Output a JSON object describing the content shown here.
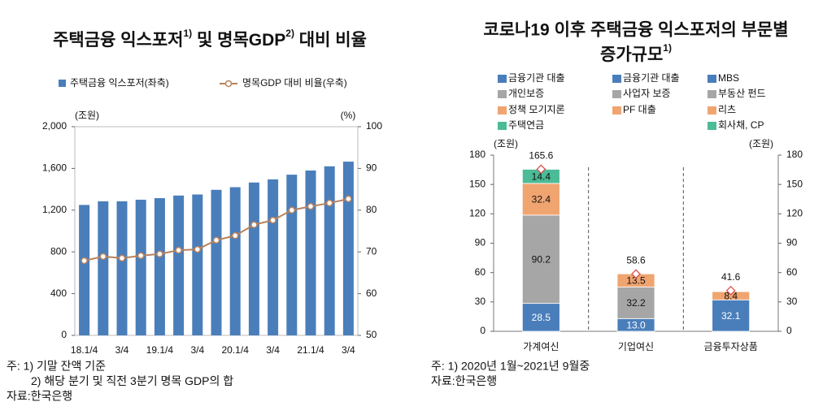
{
  "chart_data": [
    {
      "type": "combo",
      "title": [
        "주택금융 익스포저",
        "1)",
        " 및 명목GDP",
        "2)",
        " 대비 비율"
      ],
      "y_unit": "(조원)",
      "y2_unit": "(%)",
      "categories": [
        "18.1/4",
        null,
        "3/4",
        null,
        "19.1/4",
        null,
        "3/4",
        null,
        "20.1/4",
        null,
        "3/4",
        null,
        "21.1/4",
        null,
        "3/4"
      ],
      "series": [
        {
          "name": "주택금융 익스포저(좌축)",
          "color": "#4a7ebb",
          "kind": "bar",
          "values": [
            1250,
            1285,
            1285,
            1300,
            1315,
            1340,
            1350,
            1395,
            1420,
            1465,
            1495,
            1540,
            1580,
            1620,
            1665
          ]
        },
        {
          "name": "명목GDP 대비 비율(우축)",
          "color": "#b9825c",
          "kind": "line",
          "axis": "y2",
          "values": [
            67.9,
            68.9,
            68.5,
            69.1,
            69.5,
            70.4,
            70.6,
            72.8,
            73.9,
            76.5,
            77.6,
            80.0,
            80.9,
            81.7,
            82.7
          ]
        }
      ],
      "ylim": [
        0,
        2000
      ],
      "yticks": [
        0,
        400,
        800,
        {
          "value": 1200,
          "label": "1,200"
        },
        {
          "value": 1600,
          "label": "1,600"
        },
        {
          "value": 2000,
          "label": "2,000"
        }
      ],
      "y2lim": [
        50,
        100
      ],
      "y2ticks": [
        50,
        60,
        70,
        80,
        90,
        100
      ],
      "notes": [
        "주: 1) 기말 잔액 기준",
        "2) 해당 분기 및 직전 3분기 명목 GDP의 합",
        "자료:한국은행"
      ]
    },
    {
      "type": "bar",
      "stacked": true,
      "title": [
        "코로나19 이후 주택금융 익스포저의 부문별",
        "증가규모",
        "1)"
      ],
      "y_unit": "(조원)",
      "y2_unit": "(조원)",
      "categories": [
        "가계여신",
        "기업여신",
        "금융투자상품"
      ],
      "series": [
        {
          "name": "금융기관 대출",
          "color": "#4a7ebb",
          "values": [
            28.5,
            null,
            null
          ]
        },
        {
          "name": "금융기관 대출",
          "color": "#4a7ebb",
          "values": [
            null,
            13.0,
            null
          ],
          "value_labels": [
            null,
            "13.0",
            null
          ]
        },
        {
          "name": "MBS",
          "color": "#4a7ebb",
          "values": [
            null,
            null,
            32.1
          ]
        },
        {
          "name": "개인보증",
          "color": "#a6a6a6",
          "values": [
            90.2,
            null,
            null
          ]
        },
        {
          "name": "사업자 보증",
          "color": "#a6a6a6",
          "values": [
            null,
            32.2,
            null
          ]
        },
        {
          "name": "부동산 펀드",
          "color": "#a6a6a6",
          "values": [
            null,
            null,
            null
          ]
        },
        {
          "name": "정책 모기지론",
          "color": "#f0a470",
          "values": [
            32.4,
            null,
            null
          ]
        },
        {
          "name": "PF 대출",
          "color": "#f0a470",
          "values": [
            null,
            13.5,
            null
          ]
        },
        {
          "name": "리츠",
          "color": "#f0a470",
          "values": [
            null,
            null,
            8.4
          ]
        },
        {
          "name": "주택연금",
          "color": "#4cbb97",
          "values": [
            14.4,
            null,
            null
          ]
        },
        {
          "name": "회사채, CP",
          "color": "#4cbb97",
          "values": [
            null,
            null,
            null
          ]
        }
      ],
      "totals": [
        165.6,
        58.6,
        41.6
      ],
      "ylim": [
        0,
        180
      ],
      "yticks": [
        0,
        30,
        60,
        90,
        120,
        150,
        180
      ],
      "y2lim": [
        0,
        180
      ],
      "y2ticks": [
        0,
        30,
        60,
        90,
        120,
        150,
        180
      ],
      "notes": [
        "주: 1) 2020년 1월~2021년 9월중",
        "자료:한국은행"
      ]
    }
  ]
}
